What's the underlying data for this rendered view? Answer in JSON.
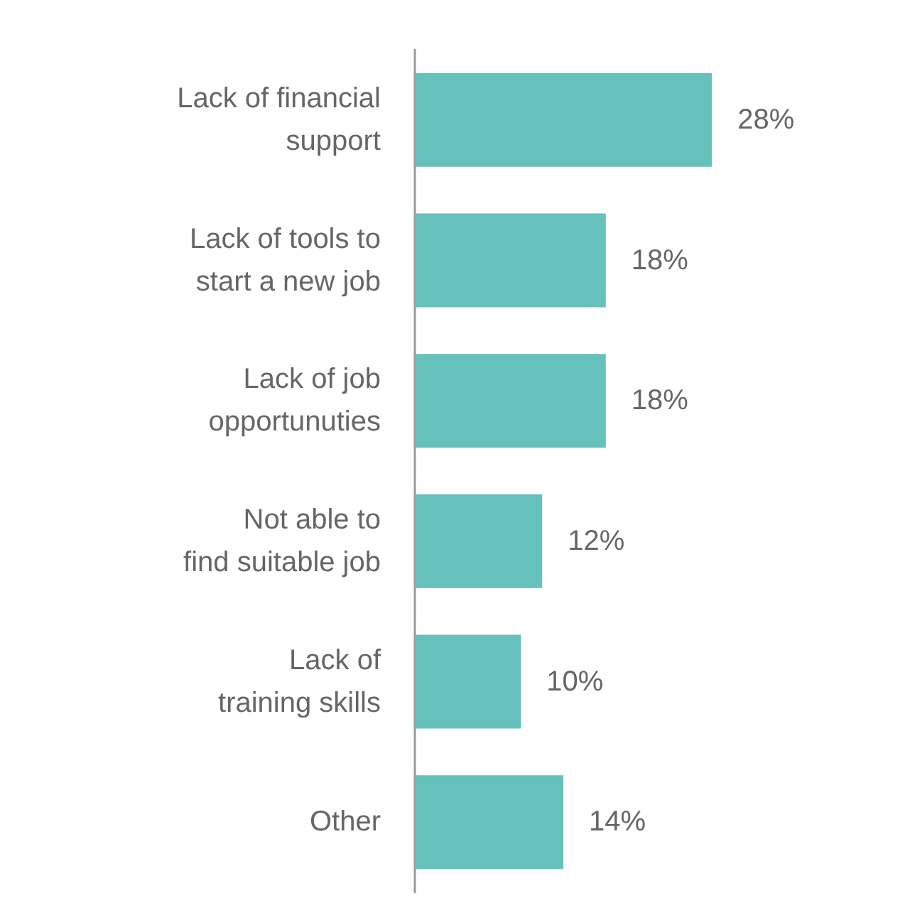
{
  "chart_data": {
    "type": "bar",
    "orientation": "horizontal",
    "categories": [
      "Lack of financial\nsupport",
      "Lack of tools to\nstart a new job",
      "Lack of job\nopportunuties",
      "Not able to\nfind suitable job",
      "Lack of\ntraining skills",
      "Other"
    ],
    "values": [
      28,
      18,
      18,
      12,
      10,
      14
    ],
    "value_labels": [
      "28%",
      "18%",
      "18%",
      "12%",
      "10%",
      "14%"
    ],
    "color": "#66c0bb"
  }
}
